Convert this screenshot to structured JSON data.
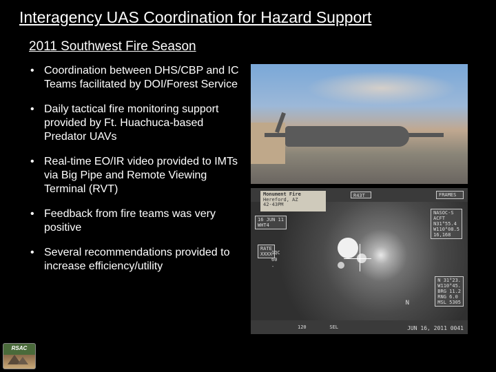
{
  "title": "Interagency UAS Coordination for Hazard Support",
  "subtitle": "2011 Southwest Fire Season",
  "bullets": [
    "Coordination between DHS/CBP and IC Teams facilitated by DOI/Forest Service",
    "Daily tactical fire monitoring support provided by Ft. Huachuca-based Predator UAVs",
    "Real-time EO/IR video provided to IMTs via Big Pipe and Remote Viewing Terminal (RVT)",
    "Feedback from fire teams was very positive",
    "Several recommendations provided to increase efficiency/utility"
  ],
  "logo": {
    "text": "RSAC"
  },
  "image_top": {
    "description": "Predator UAV on tarmac with wildfire smoke plume in background",
    "sky_color": "#7aa8d8",
    "smoke_color": "#d8d0c8",
    "ground_color": "#6a6560",
    "uav_color": "#5a5a5a"
  },
  "image_bottom": {
    "description": "EO/IR sensor feed grayscale imagery with overlays",
    "background": "#3a3a3a",
    "header_label_title": "Monument Fire",
    "header_label_sub": "Hereford, AZ",
    "header_label_line3": "42-43PM",
    "center_label": "R43T",
    "overlay_top_right": "FRAMES",
    "overlay_right_mid1": "NASOC-S",
    "overlay_right_mid2": "ACFT",
    "overlay_right_coords": "N31°55.4\nW110°08.5\n16,168",
    "overlay_left_date": "16 JUN 11\nWHT4",
    "overlay_left_rate": "RATE\nXXXX",
    "scale_labels": "1QC\n60\n-",
    "overlay_bottom_n": "N",
    "overlay_bottom_right_block": "N 31°23.\nW110°45.\nBRG 11.2\nRNG 6.0\nMSL 5305",
    "overlay_bottom_center": "SEL",
    "overlay_bottom_left": "120",
    "overlay_bottom_right": "JUN 16, 2011 0041"
  }
}
